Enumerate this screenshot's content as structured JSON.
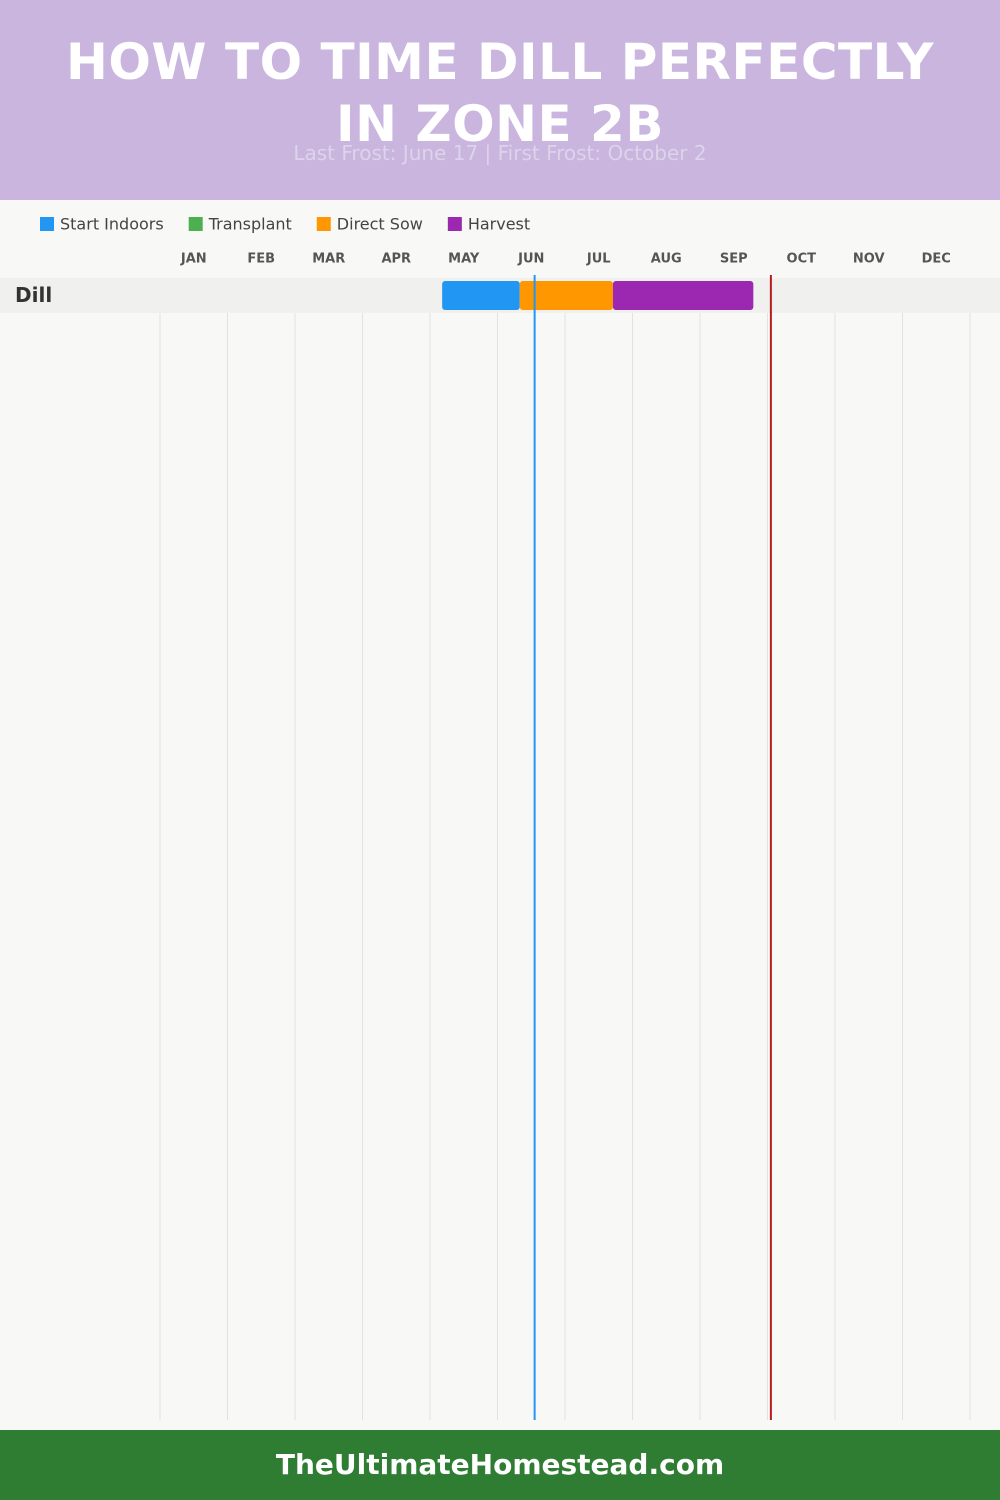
{
  "chart_data": {
    "type": "gantt",
    "title": "HOW TO TIME DILL PERFECTLY IN ZONE 2B",
    "subtitle": "Last Frost: June 17 | First Frost: October 2",
    "categories": [
      "JAN",
      "FEB",
      "MAR",
      "APR",
      "MAY",
      "JUN",
      "JUL",
      "AUG",
      "SEP",
      "OCT",
      "NOV",
      "DEC"
    ],
    "xlim": [
      0,
      12
    ],
    "rows": [
      "Dill"
    ],
    "series": [
      {
        "name": "Start Indoors",
        "color": "#2196f3",
        "ranges": [
          [
            4.18,
            5.33
          ]
        ]
      },
      {
        "name": "Transplant",
        "color": "#4caf50",
        "ranges": []
      },
      {
        "name": "Direct Sow",
        "color": "#ff9800",
        "ranges": [
          [
            5.33,
            6.71
          ]
        ]
      },
      {
        "name": "Harvest",
        "color": "#9c27b0",
        "ranges": [
          [
            6.71,
            8.79
          ]
        ]
      }
    ],
    "markers": [
      {
        "value": 5.55,
        "color": "#2196f3"
      },
      {
        "value": 9.05,
        "color": "#b71c1c"
      }
    ],
    "grid": true,
    "footer": "TheUltimateHomestead.com"
  }
}
